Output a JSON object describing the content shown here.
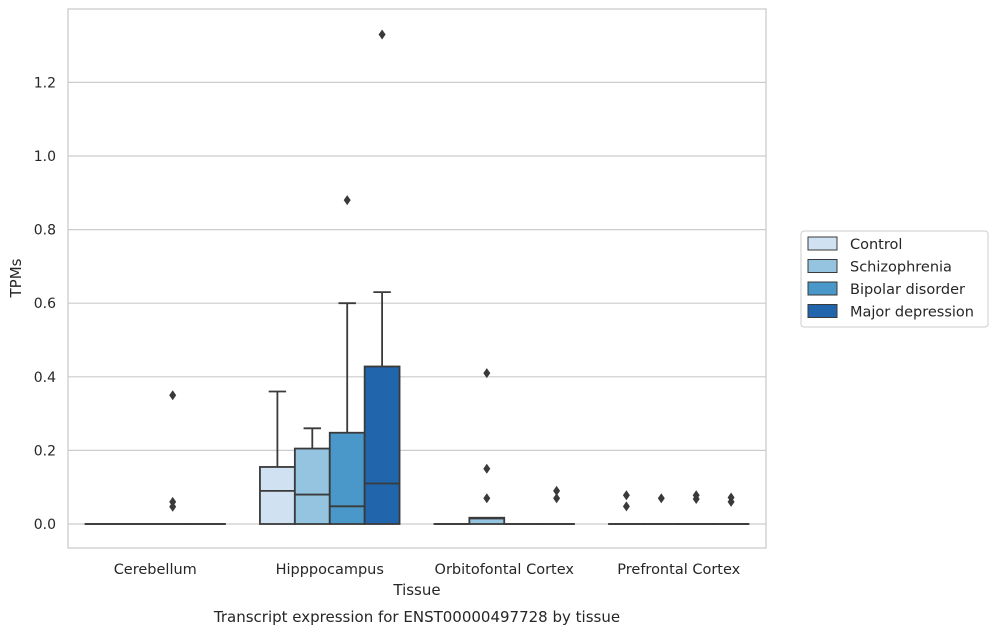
{
  "chart_data": {
    "type": "box",
    "caption": "Transcript expression for ENST00000497728 by tissue",
    "xlabel": "Tissue",
    "ylabel": "TPMs",
    "ylim": [
      -0.065,
      1.39
    ],
    "yticks": [
      "0.0",
      "0.2",
      "0.4",
      "0.6",
      "0.8",
      "1.0",
      "1.2"
    ],
    "grid": true,
    "legend_position": "right",
    "categories": [
      "Cerebellum",
      "Hipppocampus",
      "Orbitofontal Cortex",
      "Prefrontal Cortex"
    ],
    "series": [
      {
        "name": "Control",
        "color": "#d0e1f2",
        "boxes": [
          {
            "q1": 0,
            "median": 0,
            "q3": 0,
            "whisker_low": 0,
            "whisker_high": 0,
            "outliers": []
          },
          {
            "q1": 0,
            "median": 0.09,
            "q3": 0.155,
            "whisker_low": 0,
            "whisker_high": 0.36,
            "outliers": []
          },
          {
            "q1": 0,
            "median": 0,
            "q3": 0,
            "whisker_low": 0,
            "whisker_high": 0,
            "outliers": []
          },
          {
            "q1": 0,
            "median": 0,
            "q3": 0,
            "whisker_low": 0,
            "whisker_high": 0,
            "outliers": [
              0.078,
              0.048
            ]
          }
        ]
      },
      {
        "name": "Schizophrenia",
        "color": "#94c4df",
        "boxes": [
          {
            "q1": 0,
            "median": 0,
            "q3": 0,
            "whisker_low": 0,
            "whisker_high": 0,
            "outliers": []
          },
          {
            "q1": 0,
            "median": 0.08,
            "q3": 0.205,
            "whisker_low": 0,
            "whisker_high": 0.26,
            "outliers": []
          },
          {
            "q1": 0,
            "median": 0.015,
            "q3": 0.017,
            "whisker_low": 0,
            "whisker_high": 0.017,
            "outliers": [
              0.41,
              0.15,
              0.07
            ]
          },
          {
            "q1": 0,
            "median": 0,
            "q3": 0,
            "whisker_low": 0,
            "whisker_high": 0,
            "outliers": [
              0.07
            ]
          }
        ]
      },
      {
        "name": "Bipolar disorder",
        "color": "#4a98c9",
        "boxes": [
          {
            "q1": 0,
            "median": 0,
            "q3": 0,
            "whisker_low": 0,
            "whisker_high": 0,
            "outliers": [
              0.35,
              0.06,
              0.047
            ]
          },
          {
            "q1": 0,
            "median": 0.048,
            "q3": 0.248,
            "whisker_low": 0,
            "whisker_high": 0.6,
            "outliers": [
              0.88
            ]
          },
          {
            "q1": 0,
            "median": 0,
            "q3": 0,
            "whisker_low": 0,
            "whisker_high": 0,
            "outliers": []
          },
          {
            "q1": 0,
            "median": 0,
            "q3": 0,
            "whisker_low": 0,
            "whisker_high": 0,
            "outliers": [
              0.078,
              0.068
            ]
          }
        ]
      },
      {
        "name": "Major depression",
        "color": "#2166ac",
        "boxes": [
          {
            "q1": 0,
            "median": 0,
            "q3": 0,
            "whisker_low": 0,
            "whisker_high": 0,
            "outliers": []
          },
          {
            "q1": 0,
            "median": 0.11,
            "q3": 0.428,
            "whisker_low": 0,
            "whisker_high": 0.63,
            "outliers": [
              1.33
            ]
          },
          {
            "q1": 0,
            "median": 0,
            "q3": 0,
            "whisker_low": 0,
            "whisker_high": 0,
            "outliers": [
              0.09,
              0.07
            ]
          },
          {
            "q1": 0,
            "median": 0,
            "q3": 0,
            "whisker_low": 0,
            "whisker_high": 0,
            "outliers": [
              0.072,
              0.06
            ]
          }
        ]
      }
    ]
  }
}
